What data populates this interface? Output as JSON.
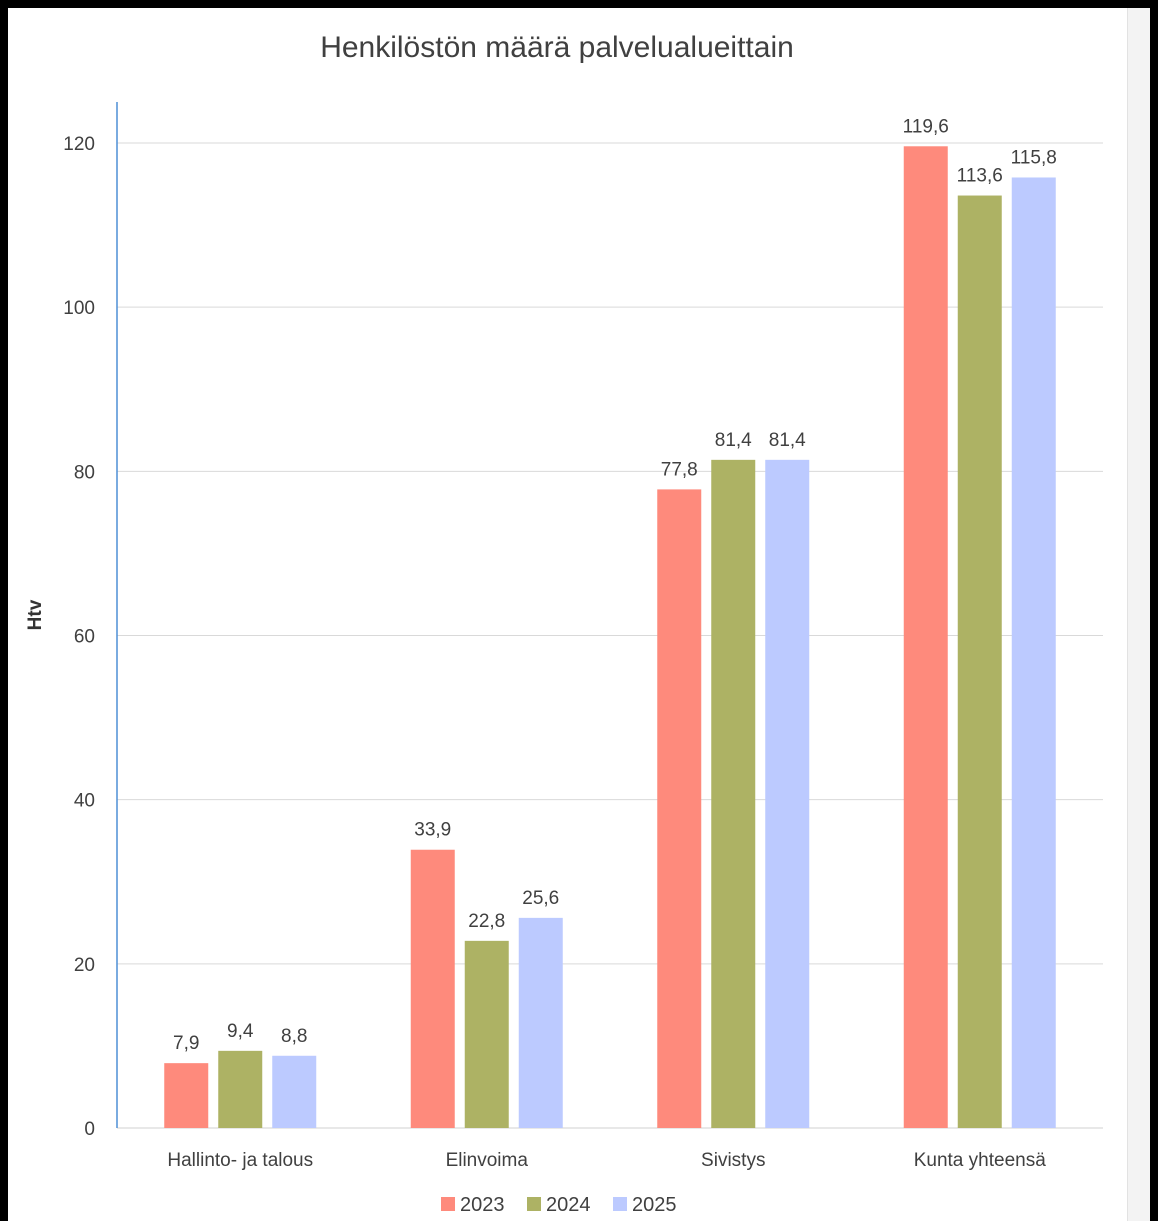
{
  "chart_data": {
    "type": "bar",
    "title": "Henkilöstön määrä palvelualueittain",
    "xlabel": "",
    "ylabel": "Htv",
    "categories": [
      "Hallinto- ja talous",
      "Elinvoima",
      "Sivistys",
      "Kunta yhteensä"
    ],
    "series": [
      {
        "name": "2023",
        "color": "#fe8a7c",
        "values": [
          7.9,
          33.9,
          77.8,
          119.6
        ],
        "labels": [
          "7,9",
          "33,9",
          "77,8",
          "119,6"
        ]
      },
      {
        "name": "2024",
        "color": "#adb264",
        "values": [
          9.4,
          22.8,
          81.4,
          113.6
        ],
        "labels": [
          "9,4",
          "22,8",
          "81,4",
          "113,6"
        ]
      },
      {
        "name": "2025",
        "color": "#bccaff",
        "values": [
          8.8,
          25.6,
          81.4,
          115.8
        ],
        "labels": [
          "8,8",
          "25,6",
          "81,4",
          "115,8"
        ]
      }
    ],
    "ylim": [
      0,
      120
    ],
    "yticks": [
      0,
      20,
      40,
      60,
      80,
      100,
      120
    ],
    "grid": true,
    "legend_position": "bottom"
  }
}
